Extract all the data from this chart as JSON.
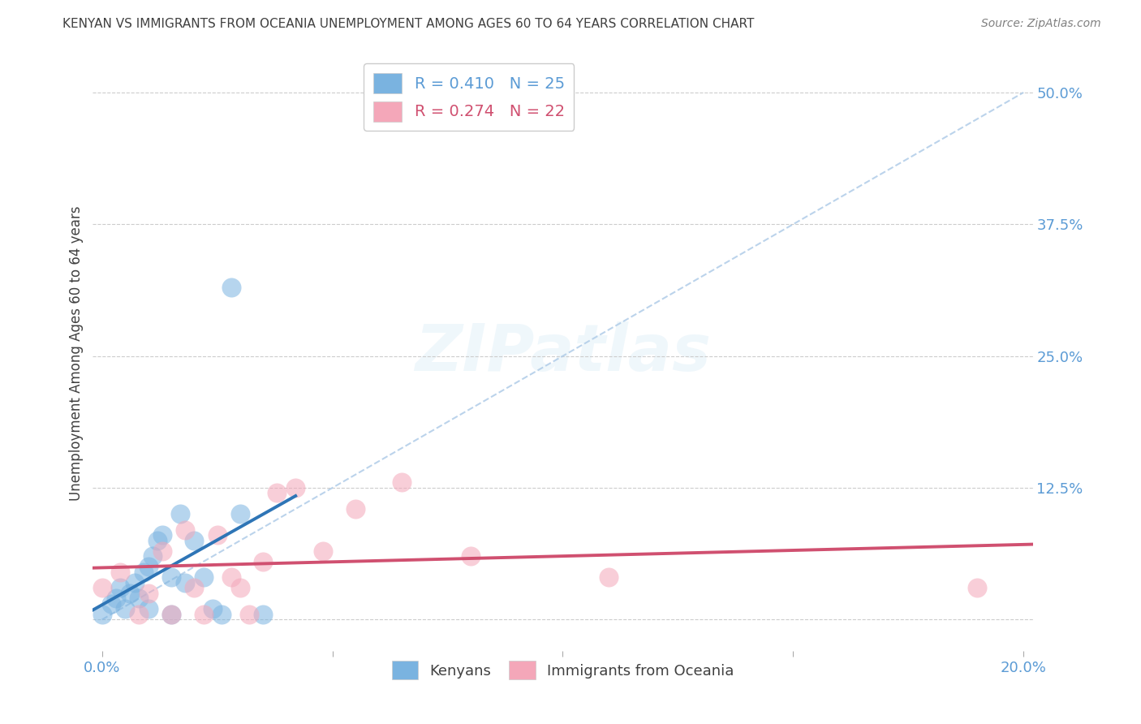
{
  "title": "KENYAN VS IMMIGRANTS FROM OCEANIA UNEMPLOYMENT AMONG AGES 60 TO 64 YEARS CORRELATION CHART",
  "source": "Source: ZipAtlas.com",
  "ylabel": "Unemployment Among Ages 60 to 64 years",
  "xlim": [
    -0.002,
    0.202
  ],
  "ylim": [
    -0.03,
    0.535
  ],
  "yticks": [
    0.0,
    0.125,
    0.25,
    0.375,
    0.5
  ],
  "ytick_labels": [
    "",
    "12.5%",
    "25.0%",
    "37.5%",
    "50.0%"
  ],
  "xticks": [
    0.0,
    0.05,
    0.1,
    0.15,
    0.2
  ],
  "xtick_labels": [
    "0.0%",
    "",
    "",
    "",
    "20.0%"
  ],
  "kenyan_x": [
    0.0,
    0.002,
    0.003,
    0.004,
    0.005,
    0.006,
    0.007,
    0.008,
    0.009,
    0.01,
    0.01,
    0.011,
    0.012,
    0.013,
    0.015,
    0.015,
    0.017,
    0.018,
    0.02,
    0.022,
    0.024,
    0.026,
    0.03,
    0.035,
    0.028
  ],
  "kenyan_y": [
    0.005,
    0.015,
    0.02,
    0.03,
    0.01,
    0.025,
    0.035,
    0.02,
    0.045,
    0.05,
    0.01,
    0.06,
    0.075,
    0.08,
    0.04,
    0.005,
    0.1,
    0.035,
    0.075,
    0.04,
    0.01,
    0.005,
    0.1,
    0.005,
    0.315
  ],
  "oceania_x": [
    0.0,
    0.004,
    0.008,
    0.01,
    0.013,
    0.015,
    0.018,
    0.02,
    0.022,
    0.025,
    0.028,
    0.03,
    0.032,
    0.035,
    0.038,
    0.042,
    0.048,
    0.055,
    0.065,
    0.08,
    0.11,
    0.19
  ],
  "oceania_y": [
    0.03,
    0.045,
    0.005,
    0.025,
    0.065,
    0.005,
    0.085,
    0.03,
    0.005,
    0.08,
    0.04,
    0.03,
    0.005,
    0.055,
    0.12,
    0.125,
    0.065,
    0.105,
    0.13,
    0.06,
    0.04,
    0.03
  ],
  "kenyan_color": "#7ab3e0",
  "oceania_color": "#f4a7b9",
  "kenyan_line_color": "#2e75b6",
  "oceania_line_color": "#d05070",
  "ref_line_color": "#b0cce8",
  "bg_color": "#ffffff",
  "grid_color": "#cccccc",
  "title_color": "#404040",
  "axis_label_color": "#404040",
  "tick_color": "#5b9bd5"
}
